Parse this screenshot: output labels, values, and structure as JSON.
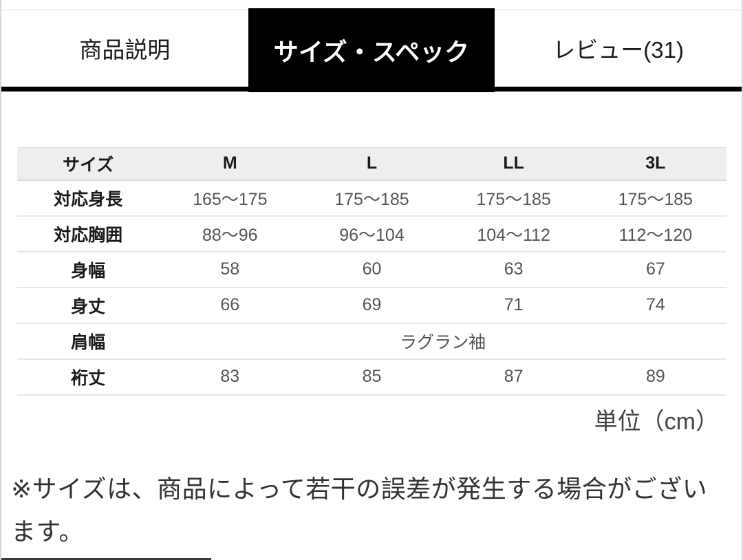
{
  "tabs": [
    {
      "label": "商品説明",
      "active": false
    },
    {
      "label": "サイズ・スペック",
      "active": true
    },
    {
      "label": "レビュー(31)",
      "active": false
    }
  ],
  "size_table": {
    "header": [
      "サイズ",
      "M",
      "L",
      "LL",
      "3L"
    ],
    "rows": [
      {
        "label": "対応身長",
        "values": [
          "165〜175",
          "175〜185",
          "175〜185",
          "175〜185"
        ]
      },
      {
        "label": "対応胸囲",
        "values": [
          "88〜96",
          "96〜104",
          "104〜112",
          "112〜120"
        ]
      },
      {
        "label": "身幅",
        "values": [
          "58",
          "60",
          "63",
          "67"
        ]
      },
      {
        "label": "身丈",
        "values": [
          "66",
          "69",
          "71",
          "74"
        ]
      },
      {
        "label": "肩幅",
        "values": [
          "ラグラン袖"
        ],
        "colspan": 4
      },
      {
        "label": "裄丈",
        "values": [
          "83",
          "85",
          "87",
          "89"
        ]
      }
    ],
    "unit_note": "単位（cm）"
  },
  "footnote": "※サイズは、商品によって若干の誤差が発生する場合がございます。",
  "colors": {
    "active_tab_bg": "#000000",
    "active_tab_text": "#ffffff",
    "tab_text": "#1a1a1a",
    "underline_bar": "#000000",
    "table_header_bg": "#eeeeee",
    "row_divider": "#e7e7e7",
    "value_text": "#555555",
    "label_text": "#1a1a1a",
    "footnote_text": "#333333"
  }
}
